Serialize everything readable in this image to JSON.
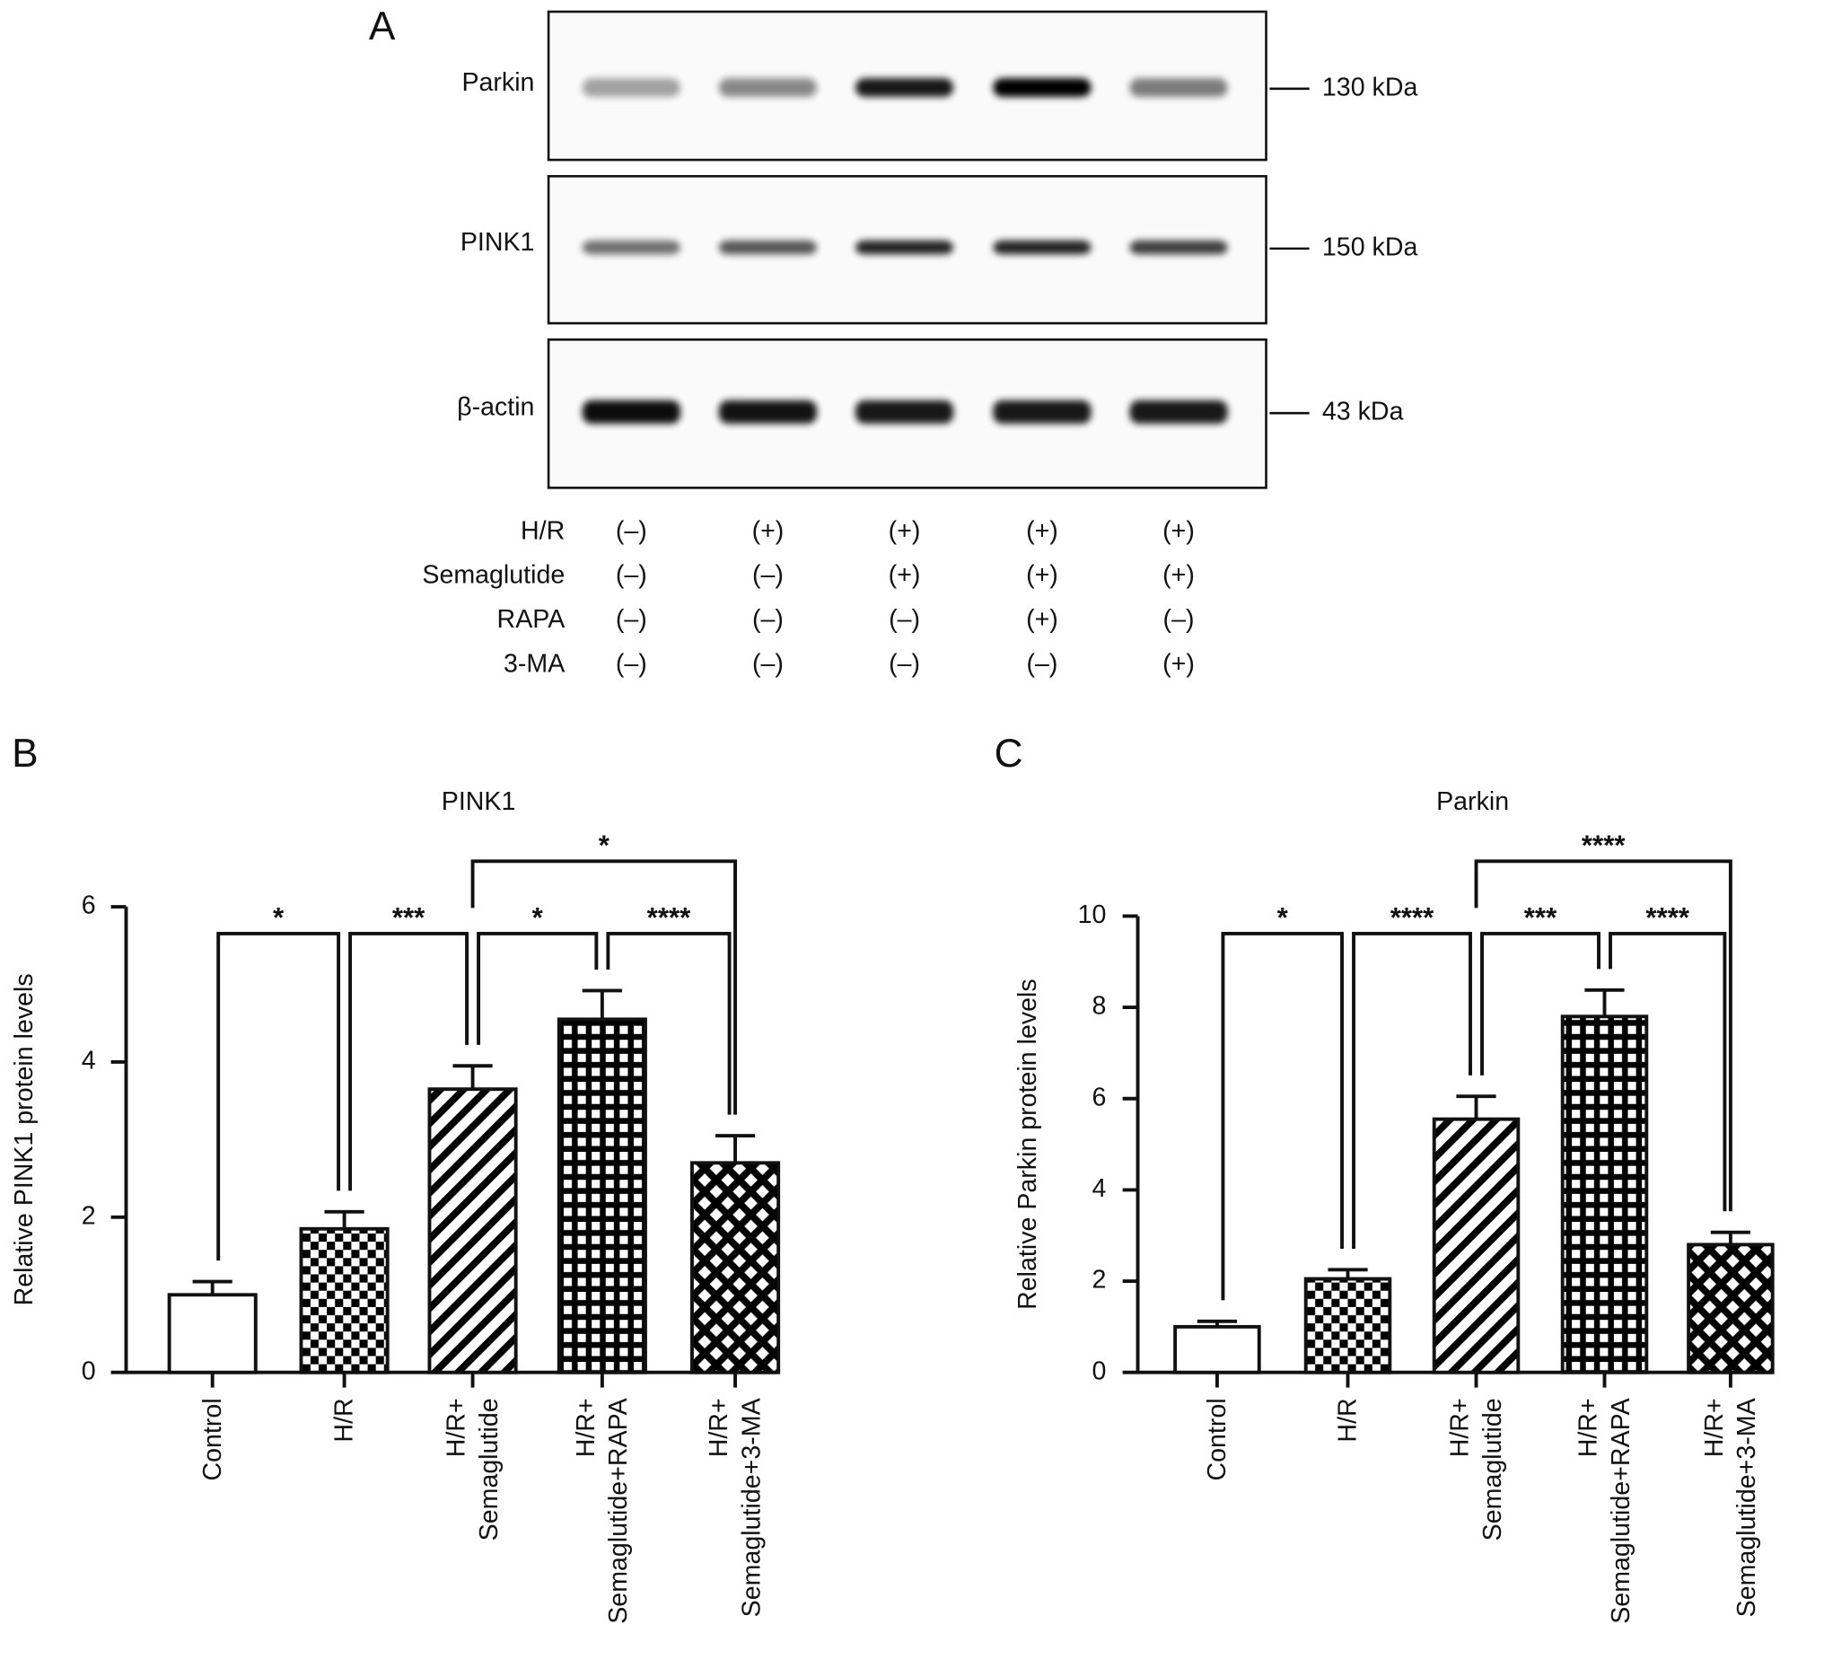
{
  "panels": [
    "A",
    "B",
    "C"
  ],
  "blot": {
    "proteins": [
      {
        "name": "Parkin",
        "size": "130 kDa"
      },
      {
        "name": "PINK1",
        "size": "150 kDa"
      },
      {
        "name": "β-actin",
        "size": "43 kDa"
      }
    ],
    "treatments": [
      {
        "name": "H/R",
        "lanes": [
          "(–)",
          "(+)",
          "(+)",
          "(+)",
          "(+)"
        ]
      },
      {
        "name": "Semaglutide",
        "lanes": [
          "(–)",
          "(–)",
          "(+)",
          "(+)",
          "(+)"
        ]
      },
      {
        "name": "RAPA",
        "lanes": [
          "(–)",
          "(–)",
          "(–)",
          "(+)",
          "(–)"
        ]
      },
      {
        "name": "3-MA",
        "lanes": [
          "(–)",
          "(–)",
          "(–)",
          "(–)",
          "(+)"
        ]
      }
    ]
  },
  "chart_data": [
    {
      "type": "bar",
      "title": "PINK1",
      "ylabel": "Relative PINK1 protein levels",
      "categories": [
        "Control",
        "H/R",
        "H/R+\nSemaglutide",
        "H/R+\nSemaglutide+RAPA",
        "H/R+\nSemaglutide+3-MA"
      ],
      "values": [
        1.0,
        1.85,
        3.65,
        4.55,
        2.7
      ],
      "errors": [
        0.17,
        0.22,
        0.3,
        0.37,
        0.35
      ],
      "patterns": [
        "none",
        "checker",
        "diagonal",
        "grid",
        "crosshatch"
      ],
      "ylim": [
        0,
        6
      ],
      "yticks": [
        0,
        2,
        4,
        6
      ],
      "comparisons": [
        {
          "groups": [
            0,
            1
          ],
          "label": "*"
        },
        {
          "groups": [
            1,
            2
          ],
          "label": "***"
        },
        {
          "groups": [
            2,
            3
          ],
          "label": "*"
        },
        {
          "groups": [
            3,
            4
          ],
          "label": "****"
        },
        {
          "groups": [
            2,
            4
          ],
          "label": "*"
        }
      ]
    },
    {
      "type": "bar",
      "title": "Parkin",
      "ylabel": "Relative Parkin protein levels",
      "categories": [
        "Control",
        "H/R",
        "H/R+\nSemaglutide",
        "H/R+\nSemaglutide+RAPA",
        "H/R+\nSemaglutide+3-MA"
      ],
      "values": [
        1.0,
        2.05,
        5.55,
        7.8,
        2.8
      ],
      "errors": [
        0.12,
        0.2,
        0.5,
        0.58,
        0.27
      ],
      "patterns": [
        "none",
        "checker",
        "diagonal",
        "grid",
        "crosshatch"
      ],
      "ylim": [
        0,
        10
      ],
      "yticks": [
        0,
        2,
        4,
        6,
        8,
        10
      ],
      "comparisons": [
        {
          "groups": [
            0,
            1
          ],
          "label": "*"
        },
        {
          "groups": [
            1,
            2
          ],
          "label": "****"
        },
        {
          "groups": [
            2,
            3
          ],
          "label": "***"
        },
        {
          "groups": [
            3,
            4
          ],
          "label": "****"
        },
        {
          "groups": [
            2,
            4
          ],
          "label": "****"
        }
      ]
    }
  ]
}
